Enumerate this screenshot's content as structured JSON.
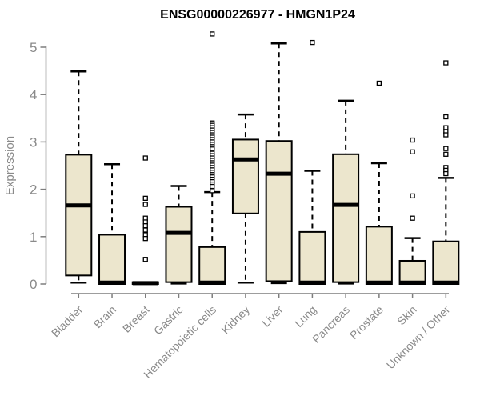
{
  "colors": {
    "background": "#ffffff",
    "box_fill": "#ece6cd",
    "box_border": "#000000",
    "median": "#000000",
    "axis": "#7d7d7d",
    "tick_label": "#8a8a8a",
    "title": "#000000"
  },
  "chart_data": {
    "type": "boxplot",
    "title": "ENSG00000226977 - HMGN1P24",
    "xlabel": "",
    "ylabel": "Expression",
    "ylim": [
      0,
      5
    ],
    "yticks": [
      0,
      1,
      2,
      3,
      4,
      5
    ],
    "grid": false,
    "legend": "none",
    "categories": [
      "Bladder",
      "Brain",
      "Breast",
      "Gastric",
      "Hematopoietic cells",
      "Kidney",
      "Liver",
      "Lung",
      "Pancreas",
      "Prostate",
      "Skin",
      "Unknown / Other"
    ],
    "series": [
      {
        "category": "Bladder",
        "whisker_low": 0.03,
        "q1": 0.18,
        "median": 1.66,
        "q3": 2.73,
        "whisker_high": 4.49,
        "outliers": []
      },
      {
        "category": "Brain",
        "whisker_low": 0.0,
        "q1": 0.0,
        "median": 0.03,
        "q3": 1.04,
        "whisker_high": 2.53,
        "outliers": []
      },
      {
        "category": "Breast",
        "whisker_low": 0.0,
        "q1": 0.0,
        "median": 0.02,
        "q3": 0.04,
        "whisker_high": 0.05,
        "outliers": [
          2.66,
          1.81,
          1.68,
          1.39,
          1.31,
          1.23,
          1.14,
          1.04,
          0.96,
          0.52
        ]
      },
      {
        "category": "Gastric",
        "whisker_low": 0.01,
        "q1": 0.04,
        "median": 1.08,
        "q3": 1.63,
        "whisker_high": 2.07,
        "outliers": []
      },
      {
        "category": "Hematopoietic cells",
        "whisker_low": 0.0,
        "q1": 0.0,
        "median": 0.03,
        "q3": 0.78,
        "whisker_high": 1.94,
        "outliers": [
          5.28,
          3.4,
          3.35,
          3.3,
          3.25,
          3.2,
          3.15,
          3.1,
          3.05,
          3.0,
          2.95,
          2.9,
          2.85,
          2.76,
          2.71,
          2.66,
          2.61,
          2.56,
          2.51,
          2.46,
          2.41,
          2.36,
          2.31,
          2.26,
          2.21,
          2.16,
          2.11,
          2.06,
          1.97
        ]
      },
      {
        "category": "Kidney",
        "whisker_low": 0.03,
        "q1": 1.49,
        "median": 2.63,
        "q3": 3.05,
        "whisker_high": 3.58,
        "outliers": []
      },
      {
        "category": "Liver",
        "whisker_low": 0.02,
        "q1": 0.06,
        "median": 2.33,
        "q3": 3.02,
        "whisker_high": 5.08,
        "outliers": []
      },
      {
        "category": "Lung",
        "whisker_low": 0.0,
        "q1": 0.0,
        "median": 0.03,
        "q3": 1.1,
        "whisker_high": 2.39,
        "outliers": [
          5.1
        ]
      },
      {
        "category": "Pancreas",
        "whisker_low": 0.01,
        "q1": 0.04,
        "median": 1.67,
        "q3": 2.74,
        "whisker_high": 3.87,
        "outliers": []
      },
      {
        "category": "Prostate",
        "whisker_low": 0.0,
        "q1": 0.0,
        "median": 0.03,
        "q3": 1.21,
        "whisker_high": 2.55,
        "outliers": [
          4.24
        ]
      },
      {
        "category": "Skin",
        "whisker_low": 0.0,
        "q1": 0.0,
        "median": 0.03,
        "q3": 0.49,
        "whisker_high": 0.97,
        "outliers": [
          3.04,
          2.79,
          1.86,
          1.39
        ]
      },
      {
        "category": "Unknown / Other",
        "whisker_low": 0.0,
        "q1": 0.0,
        "median": 0.03,
        "q3": 0.9,
        "whisker_high": 2.24,
        "outliers": [
          4.67,
          3.53,
          3.3,
          3.22,
          3.15,
          2.86,
          2.74,
          2.46,
          2.4,
          2.33
        ]
      }
    ]
  }
}
